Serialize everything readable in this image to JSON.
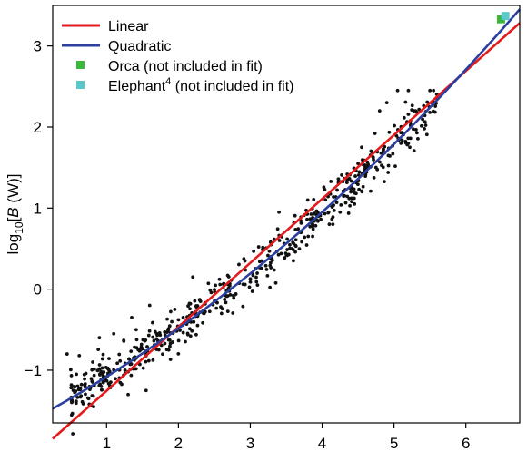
{
  "chart_data": {
    "type": "scatter",
    "title": "",
    "xlabel": "",
    "ylabel": {
      "prefix": "log",
      "sub": "10",
      "mid": "[",
      "var": "B",
      "rest": " (W)]"
    },
    "xlim": [
      0.25,
      6.75
    ],
    "ylim": [
      -1.65,
      3.5
    ],
    "xticks": [
      1,
      2,
      3,
      4,
      5,
      6
    ],
    "yticks": [
      -1,
      0,
      1,
      2,
      3
    ],
    "ytick_labels": [
      "−1",
      "0",
      "1",
      "2",
      "3"
    ],
    "grid": false,
    "legend_position": "top-left",
    "series": [
      {
        "name": "Linear",
        "kind": "line",
        "color": "#e41a1c",
        "x_range": [
          0.25,
          6.75
        ],
        "intercept": -2.043,
        "slope": 0.789
      },
      {
        "name": "Quadratic",
        "kind": "line",
        "color": "#2b3fa0",
        "x_range": [
          0.25,
          6.75
        ],
        "coeffs": [
          -1.595,
          0.4745,
          0.0405
        ]
      },
      {
        "name": "Orca (not included in fit)",
        "kind": "marker",
        "color": "#3bb83b",
        "points": [
          [
            6.49,
            3.33
          ]
        ]
      },
      {
        "name": "Elephant",
        "superscript": "4",
        "suffix": " (not included in fit)",
        "kind": "marker",
        "color": "#5cc8c8",
        "points": [
          [
            6.55,
            3.37
          ]
        ]
      },
      {
        "name": "",
        "kind": "scatter",
        "color": "#111111",
        "count": 560,
        "x_range": [
          0.5,
          5.6
        ],
        "noise_sd": 0.13,
        "extra_points": [
          [
            0.45,
            -0.8
          ],
          [
            0.62,
            -0.82
          ],
          [
            0.58,
            -1.05
          ],
          [
            0.75,
            -1.35
          ],
          [
            0.82,
            -1.45
          ],
          [
            0.7,
            -1.2
          ],
          [
            0.9,
            -0.6
          ],
          [
            1.1,
            -0.55
          ],
          [
            1.3,
            -1.3
          ],
          [
            1.55,
            -1.25
          ],
          [
            1.35,
            -0.35
          ],
          [
            1.6,
            -0.2
          ],
          [
            2.2,
            0.15
          ],
          [
            2.6,
            -0.3
          ],
          [
            3.1,
            0.05
          ],
          [
            3.4,
            0.95
          ],
          [
            3.6,
            0.35
          ],
          [
            3.95,
            0.9
          ],
          [
            4.1,
            0.8
          ],
          [
            4.15,
            0.8
          ],
          [
            4.25,
            0.95
          ],
          [
            4.4,
            1.2
          ],
          [
            4.5,
            1.55
          ],
          [
            4.55,
            1.75
          ],
          [
            4.8,
            2.2
          ],
          [
            4.9,
            2.3
          ],
          [
            5.05,
            2.45
          ],
          [
            5.2,
            2.45
          ],
          [
            5.2,
            1.8
          ],
          [
            5.22,
            1.75
          ],
          [
            5.3,
            2.2
          ],
          [
            5.5,
            2.45
          ],
          [
            5.55,
            2.45
          ],
          [
            5.6,
            2.35
          ],
          [
            4.35,
            1.35
          ],
          [
            4.45,
            1.05
          ],
          [
            3.8,
            1.1
          ],
          [
            3.85,
            0.85
          ]
        ]
      }
    ]
  }
}
